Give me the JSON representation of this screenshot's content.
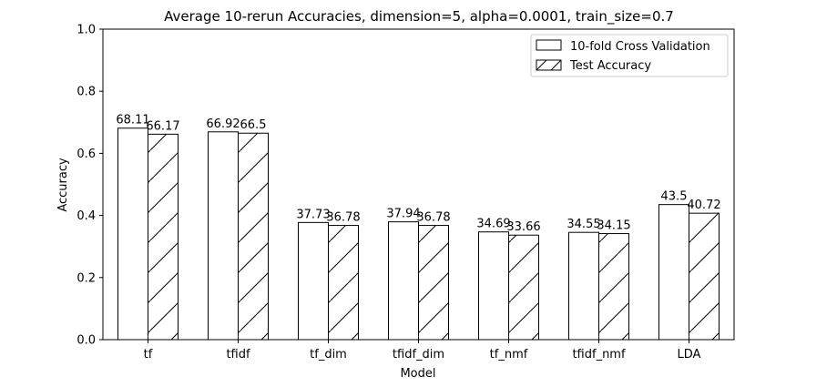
{
  "chart_data": {
    "type": "bar",
    "title": "Average 10-rerun Accuracies, dimension=5, alpha=0.0001, train_size=0.7",
    "xlabel": "Model",
    "ylabel": "Accuracy",
    "ylim": [
      0,
      1.0
    ],
    "yticks": [
      "0.0",
      "0.2",
      "0.4",
      "0.6",
      "0.8",
      "1.0"
    ],
    "grid": false,
    "legend_position": "top-right",
    "categories": [
      "tf",
      "tfidf",
      "tf_dim",
      "tfidf_dim",
      "tf_nmf",
      "tfidf_nmf",
      "LDA"
    ],
    "series": [
      {
        "name": "10-fold Cross Validation",
        "hatch": "none",
        "values": [
          0.6811,
          0.6692,
          0.3773,
          0.3794,
          0.3469,
          0.3455,
          0.435
        ],
        "labels": [
          "68.11",
          "66.92",
          "37.73",
          "37.94",
          "34.69",
          "34.55",
          "43.5"
        ]
      },
      {
        "name": "Test Accuracy",
        "hatch": "diagonal",
        "values": [
          0.6617,
          0.665,
          0.3678,
          0.3678,
          0.3366,
          0.3415,
          0.4072
        ],
        "labels": [
          "66.17",
          "66.5",
          "36.78",
          "36.78",
          "33.66",
          "34.15",
          "40.72"
        ]
      }
    ],
    "colors": {
      "bar_fill": "#ffffff",
      "bar_edge": "#000000"
    }
  }
}
